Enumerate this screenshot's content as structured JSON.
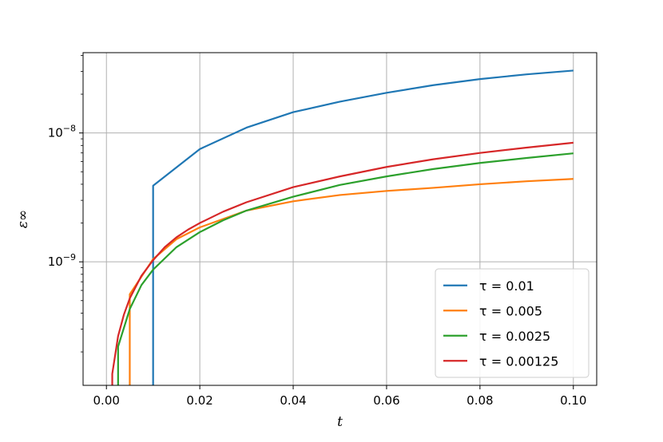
{
  "chart_data": {
    "type": "line",
    "title": "",
    "xlabel": "t",
    "ylabel": "ε∞",
    "xlim": [
      -0.005,
      0.105
    ],
    "ylim": [
      1.1e-10,
      4.2e-08
    ],
    "yscale": "log",
    "grid": true,
    "legend_position": "lower-right",
    "x_ticks": [
      0.0,
      0.02,
      0.04,
      0.06,
      0.08,
      0.1
    ],
    "x_tick_labels": [
      "0.00",
      "0.02",
      "0.04",
      "0.06",
      "0.08",
      "0.10"
    ],
    "y_major_ticks": [
      1e-09,
      1e-08
    ],
    "y_major_labels": [
      {
        "base": "10",
        "exp": "−9"
      },
      {
        "base": "10",
        "exp": "−8"
      }
    ],
    "series": [
      {
        "name": "τ = 0.01",
        "color": "#1f77b4",
        "x": [
          0.01,
          0.01,
          0.02,
          0.03,
          0.04,
          0.05,
          0.06,
          0.07,
          0.08,
          0.09,
          0.1
        ],
        "y": [
          1.1e-10,
          3.9e-09,
          7.5e-09,
          1.1e-08,
          1.45e-08,
          1.75e-08,
          2.05e-08,
          2.35e-08,
          2.62e-08,
          2.85e-08,
          3.05e-08
        ]
      },
      {
        "name": "τ = 0.005",
        "color": "#ff7f0e",
        "x": [
          0.005,
          0.005,
          0.01,
          0.015,
          0.02,
          0.03,
          0.04,
          0.05,
          0.06,
          0.07,
          0.08,
          0.09,
          0.1
        ],
        "y": [
          1.1e-10,
          5.6e-10,
          1.05e-09,
          1.5e-09,
          1.85e-09,
          2.5e-09,
          2.95e-09,
          3.3e-09,
          3.55e-09,
          3.75e-09,
          4e-09,
          4.22e-09,
          4.4e-09
        ]
      },
      {
        "name": "τ = 0.0025",
        "color": "#2ca02c",
        "x": [
          0.0025,
          0.0025,
          0.005,
          0.0075,
          0.01,
          0.015,
          0.02,
          0.025,
          0.03,
          0.04,
          0.05,
          0.06,
          0.07,
          0.08,
          0.09,
          0.1
        ],
        "y": [
          1.1e-10,
          2.2e-10,
          4.3e-10,
          6.6e-10,
          8.7e-10,
          1.3e-09,
          1.7e-09,
          2.1e-09,
          2.5e-09,
          3.2e-09,
          3.95e-09,
          4.6e-09,
          5.25e-09,
          5.85e-09,
          6.4e-09,
          6.95e-09
        ]
      },
      {
        "name": "τ = 0.00125",
        "color": "#d62728",
        "x": [
          0.00125,
          0.00125,
          0.0025,
          0.00375,
          0.005,
          0.0075,
          0.01,
          0.0125,
          0.015,
          0.0175,
          0.02,
          0.025,
          0.03,
          0.04,
          0.05,
          0.06,
          0.07,
          0.08,
          0.09,
          0.1
        ],
        "y": [
          1.1e-10,
          1.35e-10,
          2.65e-10,
          3.9e-10,
          5.2e-10,
          7.8e-10,
          1.03e-09,
          1.3e-09,
          1.55e-09,
          1.78e-09,
          2e-09,
          2.45e-09,
          2.9e-09,
          3.8e-09,
          4.6e-09,
          5.45e-09,
          6.25e-09,
          7e-09,
          7.7e-09,
          8.4e-09
        ]
      }
    ]
  }
}
